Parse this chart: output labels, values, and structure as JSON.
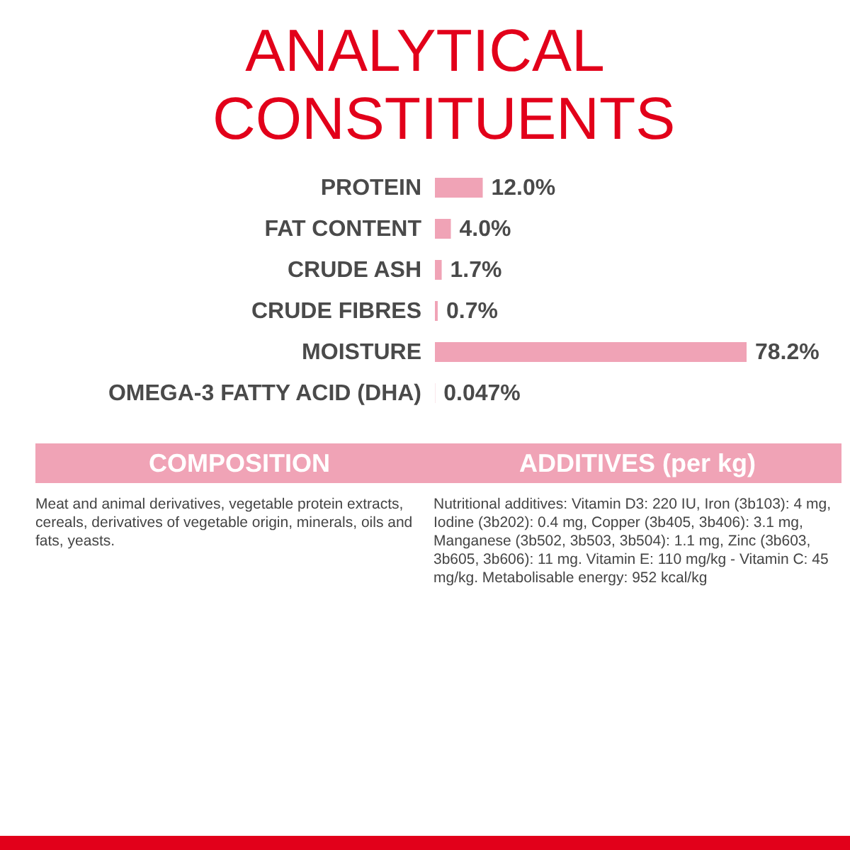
{
  "chart_data": {
    "type": "bar",
    "orientation": "horizontal",
    "title": "ANALYTICAL CONSTITUENTS",
    "categories": [
      "PROTEIN",
      "FAT CONTENT",
      "CRUDE ASH",
      "CRUDE FIBRES",
      "MOISTURE",
      "OMEGA-3 FATTY ACID (DHA)"
    ],
    "values": [
      12.0,
      4.0,
      1.7,
      0.7,
      78.2,
      0.047
    ],
    "value_labels": [
      "12.0%",
      "4.0%",
      "1.7%",
      "0.7%",
      "78.2%",
      "0.047%"
    ],
    "color": "#f0a3b6",
    "annotations": [
      "COMPOSITION",
      "Meat and animal derivatives, vegetable protein extracts, cereals, derivatives of vegetable origin, minerals, oils and fats, yeasts.",
      "ADDITIVES (per kg)",
      "Nutritional additives: Vitamin D3: 220 IU, Iron (3b103): 4 mg, Iodine (3b202): 0.4 mg, Copper (3b405, 3b406): 3.1 mg, Manganese (3b502, 3b503, 3b504): 1.1 mg, Zinc (3b603, 3b605, 3b606): 11 mg. Vitamin E: 110 mg/kg - Vitamin C: 45 mg/kg. Metabolisable energy: 952 kcal/kg"
    ]
  }
}
